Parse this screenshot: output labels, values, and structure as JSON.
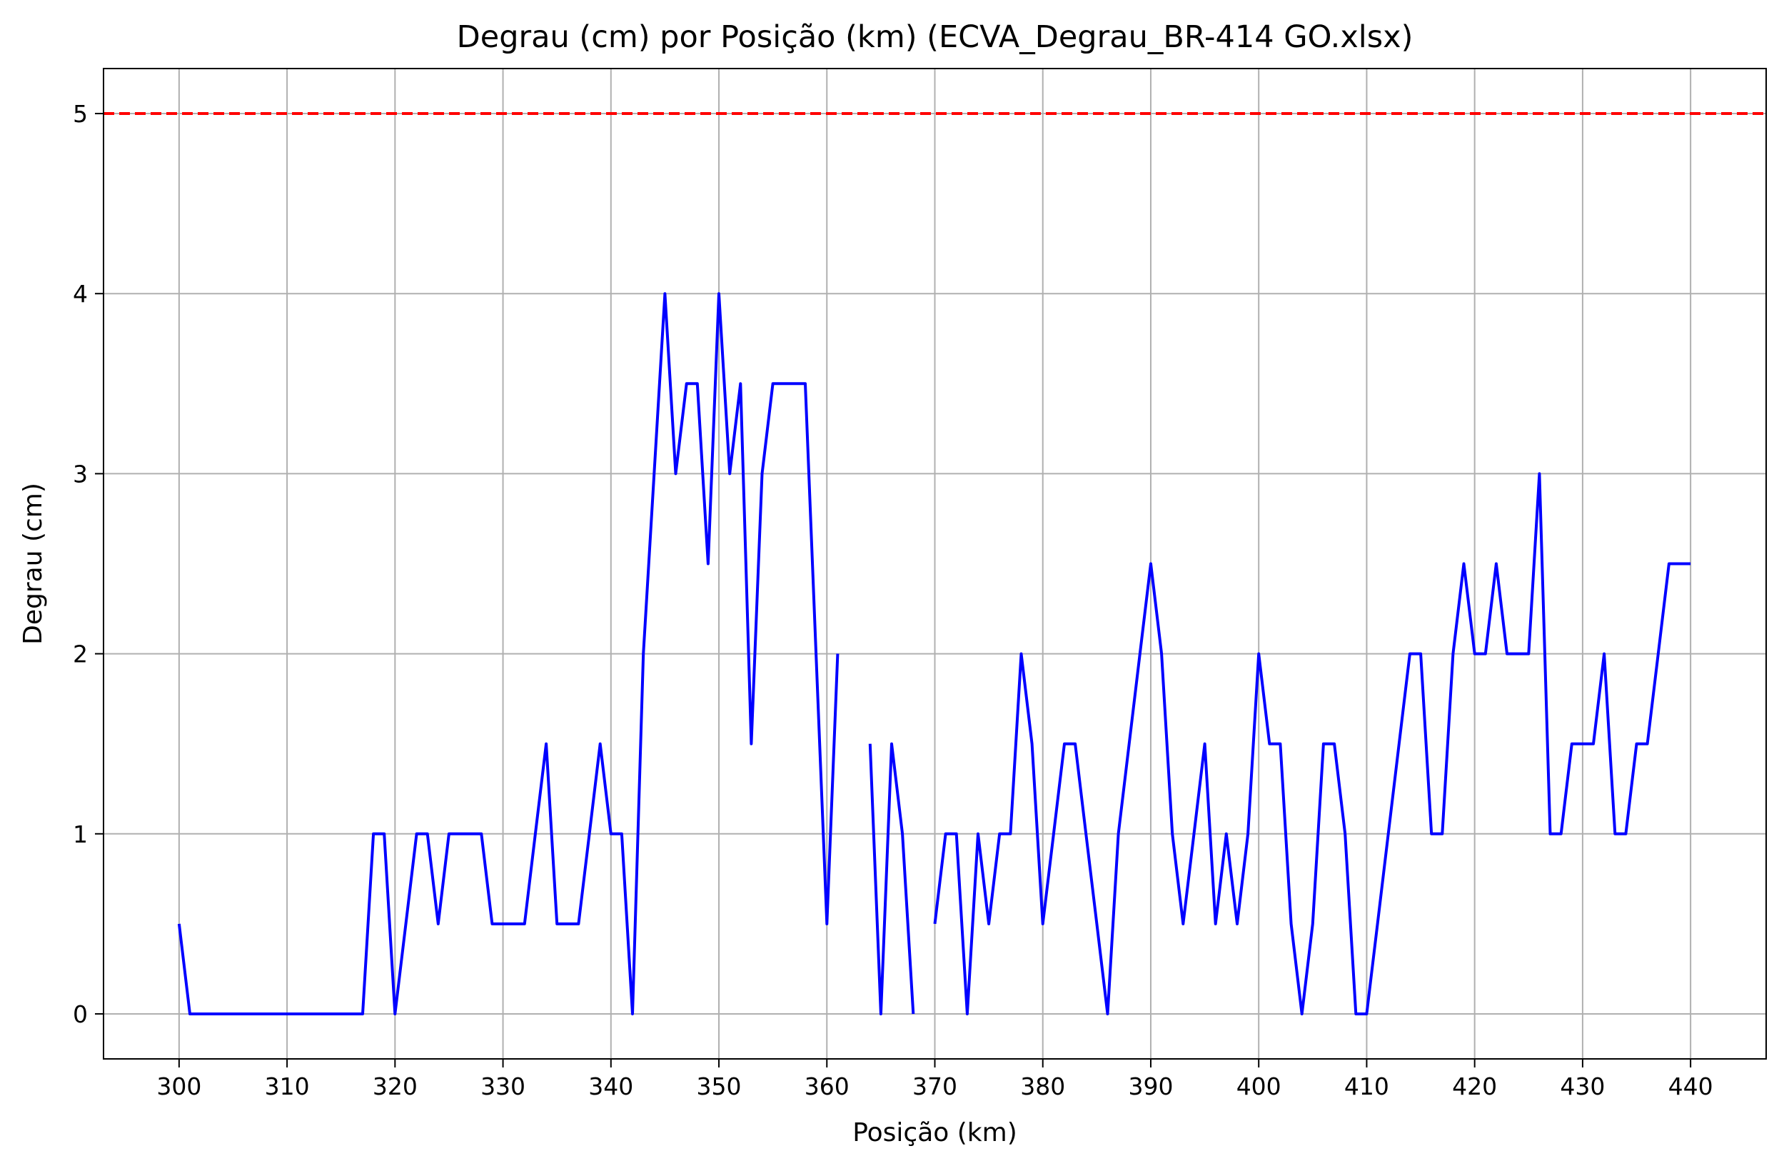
{
  "chart_data": {
    "type": "line",
    "title": "Degrau (cm) por Posição (km) (ECVA_Degrau_BR-414 GO.xlsx)",
    "xlabel": "Posição (km)",
    "ylabel": "Degrau (cm)",
    "xlim": [
      293,
      447
    ],
    "ylim": [
      -0.25,
      5.25
    ],
    "xticks": [
      300,
      310,
      320,
      330,
      340,
      350,
      360,
      370,
      380,
      390,
      400,
      410,
      420,
      430,
      440
    ],
    "yticks": [
      0,
      1,
      2,
      3,
      4,
      5
    ],
    "xtick_labels": [
      "300",
      "310",
      "320",
      "330",
      "340",
      "350",
      "360",
      "370",
      "380",
      "390",
      "400",
      "410",
      "420",
      "430",
      "440"
    ],
    "ytick_labels": [
      "0",
      "1",
      "2",
      "3",
      "4",
      "5"
    ],
    "grid": true,
    "series": [
      {
        "color": "#0000ff",
        "x": [
          300,
          301,
          302,
          303,
          304,
          305,
          306,
          307,
          308,
          309,
          310,
          311,
          312,
          313,
          314,
          315,
          316,
          317,
          318,
          319,
          320,
          321,
          322,
          323,
          324,
          325,
          326,
          327,
          328,
          329,
          330,
          331,
          332,
          333,
          334,
          335,
          336,
          337,
          338,
          339,
          340,
          341,
          342,
          343,
          344,
          345,
          346,
          347,
          348,
          349,
          350,
          351,
          352,
          353,
          354,
          355,
          356,
          357,
          358,
          359,
          360,
          361,
          362,
          363,
          364,
          365,
          366,
          367,
          368,
          369,
          370,
          371,
          372,
          373,
          374,
          375,
          376,
          377,
          378,
          379,
          380,
          381,
          382,
          383,
          384,
          385,
          386,
          387,
          388,
          389,
          390,
          391,
          392,
          393,
          394,
          395,
          396,
          397,
          398,
          399,
          400,
          401,
          402,
          403,
          404,
          405,
          406,
          407,
          408,
          409,
          410,
          411,
          412,
          413,
          414,
          415,
          416,
          417,
          418,
          419,
          420,
          421,
          422,
          423,
          424,
          425,
          426,
          427,
          428,
          429,
          430,
          431,
          432,
          433,
          434,
          435,
          436,
          437,
          438,
          439,
          440
        ],
        "y": [
          0.5,
          0,
          0,
          0,
          0,
          0,
          0,
          0,
          0,
          0,
          0,
          0,
          0,
          0,
          0,
          0,
          0,
          0,
          1,
          1,
          0,
          0.5,
          1,
          1,
          0.5,
          1,
          1,
          1,
          1,
          0.5,
          0.5,
          0.5,
          0.5,
          1,
          1.5,
          0.5,
          0.5,
          0.5,
          1,
          1.5,
          1,
          1,
          0,
          2,
          3,
          4,
          3,
          3.5,
          3.5,
          2.5,
          4,
          3,
          3.5,
          1.5,
          3,
          3.5,
          3.5,
          3.5,
          3.5,
          2,
          0.5,
          2,
          null,
          null,
          1.5,
          0,
          1.5,
          1,
          0,
          null,
          0.5,
          1,
          1,
          0,
          1,
          0.5,
          1,
          1,
          2,
          1.5,
          0.5,
          1,
          1.5,
          1.5,
          1,
          0.5,
          0,
          1,
          1.5,
          2,
          2.5,
          2,
          1,
          0.5,
          1,
          1.5,
          0.5,
          1,
          0.5,
          1,
          2,
          1.5,
          1.5,
          0.5,
          0,
          0.5,
          1.5,
          1.5,
          1,
          0,
          0,
          0.5,
          1,
          1.5,
          2,
          2,
          1,
          1,
          2,
          2.5,
          2,
          2,
          2.5,
          2,
          2,
          2,
          3,
          1,
          1,
          1.5,
          1.5,
          1.5,
          2,
          1,
          1,
          1.5,
          1.5,
          2,
          2.5,
          2.5,
          2.5
        ]
      }
    ],
    "reference_line": {
      "y": 5,
      "color": "#ff0000",
      "style": "dashed"
    }
  }
}
